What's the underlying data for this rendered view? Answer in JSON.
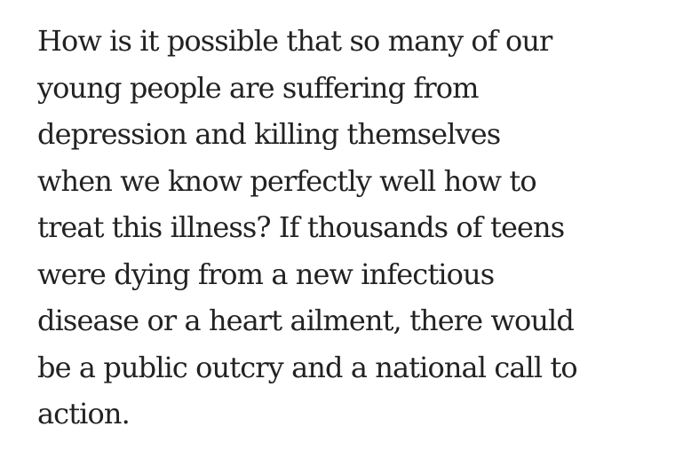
{
  "article": {
    "lines": [
      "How is it possible that so many of our",
      "young people are suffering from",
      "depression and killing themselves",
      "when we know perfectly well how to",
      "treat this illness? If thousands of teens",
      "were dying from a new infectious",
      "disease or a heart ailment, there would",
      "be a public outcry and a national call to",
      "action."
    ]
  }
}
